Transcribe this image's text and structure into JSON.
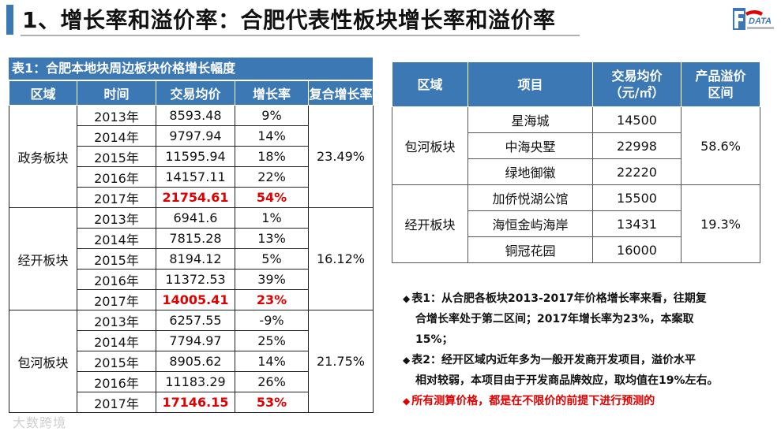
{
  "title": "1、增长率和溢价率：合肥代表性板块增长率和溢价率",
  "logo": {
    "text": "DATA",
    "subtext": ""
  },
  "table1": {
    "caption": "表1：合肥本地块周边板块价格增长幅度",
    "headers": [
      "区域",
      "时间",
      "交易均价",
      "增长率",
      "复合增长率"
    ],
    "groups": [
      {
        "region": "政务板块",
        "cagr": "23.49%",
        "rows": [
          {
            "year": "2013年",
            "price": "8593.48",
            "growth": "9%"
          },
          {
            "year": "2014年",
            "price": "9797.94",
            "growth": "14%"
          },
          {
            "year": "2015年",
            "price": "11595.94",
            "growth": "18%"
          },
          {
            "year": "2016年",
            "price": "14157.11",
            "growth": "22%"
          },
          {
            "year": "2017年",
            "price": "21754.61",
            "growth": "54%"
          }
        ]
      },
      {
        "region": "经开板块",
        "cagr": "16.12%",
        "rows": [
          {
            "year": "2013年",
            "price": "6941.6",
            "growth": "1%"
          },
          {
            "year": "2014年",
            "price": "7815.28",
            "growth": "13%"
          },
          {
            "year": "2015年",
            "price": "8194.12",
            "growth": "5%"
          },
          {
            "year": "2016年",
            "price": "11372.53",
            "growth": "39%"
          },
          {
            "year": "2017年",
            "price": "14005.41",
            "growth": "23%"
          }
        ]
      },
      {
        "region": "包河板块",
        "cagr": "21.75%",
        "rows": [
          {
            "year": "2013年",
            "price": "6257.55",
            "growth": "-9%"
          },
          {
            "year": "2014年",
            "price": "7794.97",
            "growth": "25%"
          },
          {
            "year": "2015年",
            "price": "8905.62",
            "growth": "14%"
          },
          {
            "year": "2016年",
            "price": "11183.29",
            "growth": "26%"
          },
          {
            "year": "2017年",
            "price": "17146.15",
            "growth": "53%"
          }
        ]
      }
    ]
  },
  "table2": {
    "headers": [
      "区域",
      "项目",
      "交易均价\n（元/㎡）",
      "产品溢价\n区间"
    ],
    "groups": [
      {
        "region": "包河板块",
        "premium": "58.6%",
        "rows": [
          {
            "project": "星海城",
            "price": "14500"
          },
          {
            "project": "中海央墅",
            "price": "22998"
          },
          {
            "project": "绿地御徽",
            "price": "22220"
          }
        ]
      },
      {
        "region": "经开板块",
        "premium": "19.3%",
        "rows": [
          {
            "project": "加侨悦湖公馆",
            "price": "15500"
          },
          {
            "project": "海恒金屿海岸",
            "price": "13431"
          },
          {
            "project": "铜冠花园",
            "price": "16000"
          }
        ]
      }
    ]
  },
  "notes": [
    {
      "bullet": "◆",
      "line1": "表1：从合肥各板块2013-2017年价格增长率来看，往期复",
      "line2": "合增长率处于第二区间；2017年增长率为23%，本案取",
      "line3": "15%；",
      "color": "#111111"
    },
    {
      "bullet": "◆",
      "line1": "表2：经开区域内近年多为一般开发商开发项目，溢价水平",
      "line2": "相对较弱，本项目由于开发商品牌效应，取均值在19%左右。",
      "line3": "",
      "color": "#111111"
    },
    {
      "bullet": "◆",
      "line1": "所有测算价格，都是在不限价的前提下进行预测的",
      "line2": "",
      "line3": "",
      "color": "#e00000"
    }
  ],
  "watermark": "大数跨境",
  "colors": {
    "header_blue": "#3c78b4",
    "highlight_red": "#e00000"
  }
}
